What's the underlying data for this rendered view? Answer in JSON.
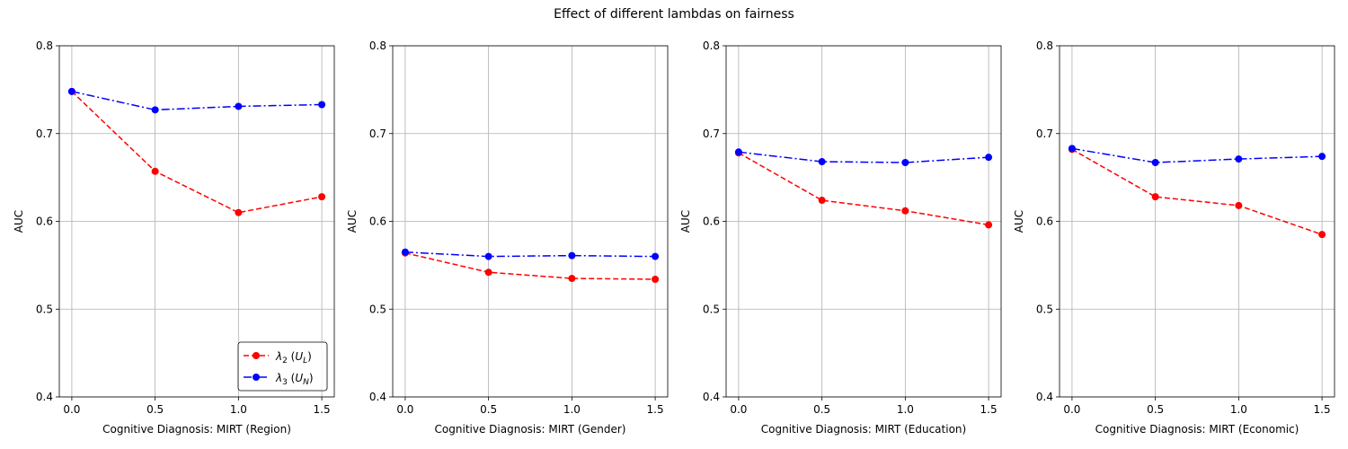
{
  "figure": {
    "title": "Effect of different lambdas on fairness"
  },
  "colors": {
    "lambda2": "#ff0000",
    "lambda3": "#0000ff",
    "grid": "#b0b0b0",
    "axes": "#000000"
  },
  "chart_data": [
    {
      "type": "line",
      "xlabel": "Cognitive Diagnosis: MIRT (Region)",
      "ylabel": "AUC",
      "x": [
        0.0,
        0.5,
        1.0,
        1.5
      ],
      "xticks": [
        "0.0",
        "0.5",
        "1.0",
        "1.5"
      ],
      "yticks": [
        "0.4",
        "0.5",
        "0.6",
        "0.7",
        "0.8"
      ],
      "xlim": [
        -0.075,
        1.575
      ],
      "ylim": [
        0.4,
        0.8
      ],
      "grid": true,
      "legend": "lower-right",
      "series": [
        {
          "name": "λ2 (UL)",
          "name_parts": [
            "λ",
            "2",
            " (",
            "U",
            "L",
            ")"
          ],
          "style": "dashed",
          "values": [
            0.748,
            0.657,
            0.61,
            0.628
          ]
        },
        {
          "name": "λ3 (UN)",
          "name_parts": [
            "λ",
            "3",
            " (",
            "U",
            "N",
            ")"
          ],
          "style": "dashdot",
          "values": [
            0.748,
            0.727,
            0.731,
            0.733
          ]
        }
      ]
    },
    {
      "type": "line",
      "xlabel": "Cognitive Diagnosis: MIRT (Gender)",
      "ylabel": "AUC",
      "x": [
        0.0,
        0.5,
        1.0,
        1.5
      ],
      "xticks": [
        "0.0",
        "0.5",
        "1.0",
        "1.5"
      ],
      "yticks": [
        "0.4",
        "0.5",
        "0.6",
        "0.7",
        "0.8"
      ],
      "xlim": [
        -0.075,
        1.575
      ],
      "ylim": [
        0.4,
        0.8
      ],
      "grid": true,
      "series": [
        {
          "name": "λ2 (UL)",
          "style": "dashed",
          "values": [
            0.564,
            0.542,
            0.535,
            0.534
          ]
        },
        {
          "name": "λ3 (UN)",
          "style": "dashdot",
          "values": [
            0.565,
            0.56,
            0.561,
            0.56
          ]
        }
      ]
    },
    {
      "type": "line",
      "xlabel": "Cognitive Diagnosis: MIRT (Education)",
      "ylabel": "AUC",
      "x": [
        0.0,
        0.5,
        1.0,
        1.5
      ],
      "xticks": [
        "0.0",
        "0.5",
        "1.0",
        "1.5"
      ],
      "yticks": [
        "0.4",
        "0.5",
        "0.6",
        "0.7",
        "0.8"
      ],
      "xlim": [
        -0.075,
        1.575
      ],
      "ylim": [
        0.4,
        0.8
      ],
      "grid": true,
      "series": [
        {
          "name": "λ2 (UL)",
          "style": "dashed",
          "values": [
            0.678,
            0.624,
            0.612,
            0.596
          ]
        },
        {
          "name": "λ3 (UN)",
          "style": "dashdot",
          "values": [
            0.679,
            0.668,
            0.667,
            0.673
          ]
        }
      ]
    },
    {
      "type": "line",
      "xlabel": "Cognitive Diagnosis: MIRT (Economic)",
      "ylabel": "AUC",
      "x": [
        0.0,
        0.5,
        1.0,
        1.5
      ],
      "xticks": [
        "0.0",
        "0.5",
        "1.0",
        "1.5"
      ],
      "yticks": [
        "0.4",
        "0.5",
        "0.6",
        "0.7",
        "0.8"
      ],
      "xlim": [
        -0.075,
        1.575
      ],
      "ylim": [
        0.4,
        0.8
      ],
      "grid": true,
      "series": [
        {
          "name": "λ2 (UL)",
          "style": "dashed",
          "values": [
            0.682,
            0.628,
            0.618,
            0.585
          ]
        },
        {
          "name": "λ3 (UN)",
          "style": "dashdot",
          "values": [
            0.683,
            0.667,
            0.671,
            0.674
          ]
        }
      ]
    }
  ]
}
